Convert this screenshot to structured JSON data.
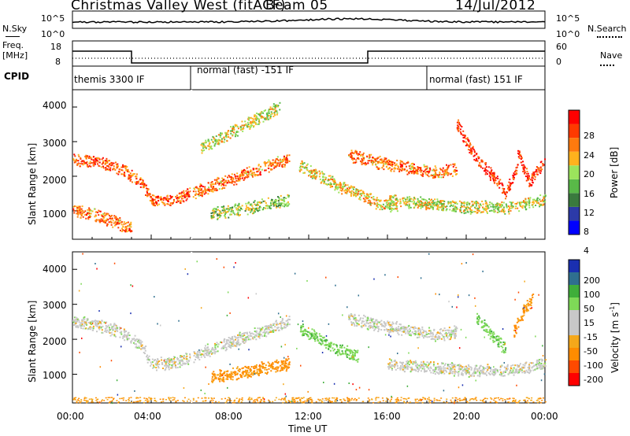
{
  "header": {
    "station": "Christmas Valley West (fitACF)",
    "beam": "Beam 05",
    "date": "14/Jul/2012"
  },
  "noise_panel": {
    "left_label": "N.Sky",
    "left_ticks": [
      "10^5",
      "10^0"
    ],
    "right_ticks": [
      "10^5",
      "10^0"
    ],
    "right_label": "N.Search"
  },
  "freq_panel": {
    "left_label_line1": "Freq.",
    "left_label_line2": "[MHz]",
    "left_ticks": [
      "18",
      "8"
    ],
    "right_ticks": [
      "60",
      "0"
    ],
    "right_label": "Nave"
  },
  "cpid_panel": {
    "label": "CPID",
    "segments": [
      "themis 3300 IF",
      "normal (fast) -151 IF",
      "normal (fast) 151 IF"
    ]
  },
  "power_panel": {
    "ylabel": "Slant Range [km]",
    "yticks": [
      "4000",
      "3000",
      "2000",
      "1000"
    ],
    "colorbar_label": "Power [dB]",
    "colorbar_ticks": [
      "28",
      "24",
      "20",
      "16",
      "12",
      "8",
      "4"
    ],
    "colorbar_colors": [
      "#0000ff",
      "#2c3aa8",
      "#3a7a3e",
      "#59b948",
      "#9be45c",
      "#ffb21d",
      "#ff7a0e",
      "#ff3a00",
      "#ff0000"
    ]
  },
  "velocity_panel": {
    "ylabel": "Slant Range [km]",
    "yticks": [
      "4000",
      "3000",
      "2000",
      "1000"
    ],
    "colorbar_label": "Velocity [m s",
    "colorbar_label_sup": "-1",
    "colorbar_label_end": "]",
    "colorbar_ticks": [
      "200",
      "100",
      "50",
      "15",
      "-15",
      "-50",
      "-100",
      "-200"
    ],
    "colorbar_colors": [
      "#ff0000",
      "#ff4a00",
      "#ff8c00",
      "#f5a81a",
      "#c8c8c8",
      "#c8c8c8",
      "#7ed957",
      "#3fae3a",
      "#2f6f8f",
      "#1a2fb0"
    ]
  },
  "xaxis": {
    "label": "Time UT",
    "ticks": [
      "00:00",
      "04:00",
      "08:00",
      "12:00",
      "16:00",
      "20:00",
      "00:00"
    ]
  },
  "chart_data": {
    "type": "heatmap",
    "title": "Christmas Valley West (fitACF)",
    "xlabel": "Time UT",
    "ylabel": "Slant Range [km]",
    "xlim": [
      0,
      24
    ],
    "ylim": [
      180,
      4500
    ],
    "power_range_db": [
      0,
      30
    ],
    "velocity_range": [
      -250,
      250
    ],
    "power_echo_bands": [
      {
        "t": [
          0.0,
          1.2,
          2.5,
          3.5,
          4.0,
          5.0,
          6.0
        ],
        "range_km": [
          2500,
          2400,
          2200,
          1800,
          1300,
          1300,
          1500
        ],
        "power_db": 24
      },
      {
        "t": [
          0.0,
          1.0,
          2.0,
          3.0
        ],
        "range_km": [
          1000,
          900,
          700,
          500
        ],
        "power_db": 22
      },
      {
        "t": [
          6.1,
          7.0,
          8.0,
          9.0,
          10.0,
          11.0
        ],
        "range_km": [
          1500,
          1700,
          1900,
          2100,
          2300,
          2500
        ],
        "power_db": 22
      },
      {
        "t": [
          6.5,
          7.5,
          8.5,
          9.5,
          10.5
        ],
        "range_km": [
          2800,
          3100,
          3400,
          3700,
          4000
        ],
        "power_db": 16
      },
      {
        "t": [
          7.0,
          8.0,
          9.0,
          10.0,
          11.0
        ],
        "range_km": [
          900,
          1000,
          1100,
          1200,
          1300
        ],
        "power_db": 14
      },
      {
        "t": [
          11.5,
          12.5,
          13.5,
          14.5,
          15.5,
          16.5
        ],
        "range_km": [
          2300,
          2000,
          1700,
          1500,
          1200,
          1100
        ],
        "power_db": 18
      },
      {
        "t": [
          14.0,
          15.5,
          16.5,
          17.5,
          18.5,
          19.5
        ],
        "range_km": [
          2600,
          2400,
          2300,
          2200,
          2100,
          2200
        ],
        "power_db": 22
      },
      {
        "t": [
          19.5,
          20.5,
          21.5,
          22.0,
          22.6
        ],
        "range_km": [
          3500,
          2500,
          1900,
          1500,
          2300
        ],
        "power_db": 26
      },
      {
        "t": [
          22.6,
          23.2,
          24.0
        ],
        "range_km": [
          2700,
          1800,
          2500
        ],
        "power_db": 26
      },
      {
        "t": [
          16.0,
          18.0,
          20.0,
          22.0,
          24.0
        ],
        "range_km": [
          1300,
          1200,
          1100,
          1100,
          1300
        ],
        "power_db": 16
      }
    ],
    "velocity_echo_bands": [
      {
        "t": [
          0.0,
          1.2,
          2.5,
          3.5,
          4.0,
          5.0,
          6.0
        ],
        "range_km": [
          2500,
          2400,
          2200,
          1800,
          1300,
          1300,
          1500
        ],
        "velocity": 0
      },
      {
        "t": [
          6.1,
          7.0,
          8.0,
          9.0,
          10.0,
          11.0
        ],
        "range_km": [
          1500,
          1700,
          1900,
          2100,
          2300,
          2500
        ],
        "velocity": 0
      },
      {
        "t": [
          7.0,
          8.0,
          9.0,
          10.0,
          11.0
        ],
        "range_km": [
          900,
          1000,
          1100,
          1200,
          1300
        ],
        "velocity": -60
      },
      {
        "t": [
          11.5,
          12.5,
          13.5,
          14.5
        ],
        "range_km": [
          2300,
          2000,
          1700,
          1500
        ],
        "velocity": 40
      },
      {
        "t": [
          14.0,
          15.5,
          16.5,
          17.5,
          18.5,
          19.5
        ],
        "range_km": [
          2600,
          2400,
          2300,
          2200,
          2100,
          2200
        ],
        "velocity": 0
      },
      {
        "t": [
          20.5,
          21.5,
          22.0
        ],
        "range_km": [
          2600,
          2000,
          1700
        ],
        "velocity": 40
      },
      {
        "t": [
          22.4,
          22.9,
          23.4
        ],
        "range_km": [
          2200,
          2800,
          3200
        ],
        "velocity": -60
      },
      {
        "t": [
          16.0,
          18.0,
          20.0,
          22.0,
          24.0
        ],
        "range_km": [
          1300,
          1200,
          1100,
          1100,
          1300
        ],
        "velocity": 0
      }
    ],
    "cpid_segments": [
      {
        "name": "themis 3300 IF",
        "start": 0.0,
        "end": 6.0
      },
      {
        "name": "normal (fast) -151 IF",
        "start": 6.0,
        "end": 18.0
      },
      {
        "name": "normal (fast) 151 IF",
        "start": 18.0,
        "end": 24.0
      }
    ],
    "frequency_mhz": [
      {
        "t": [
          0.0,
          3.0
        ],
        "value": 15
      },
      {
        "t": [
          3.0,
          6.0
        ],
        "value": 10
      },
      {
        "t": [
          6.0,
          15.0
        ],
        "value": 10
      },
      {
        "t": [
          15.0,
          24.0
        ],
        "value": 15
      }
    ]
  }
}
